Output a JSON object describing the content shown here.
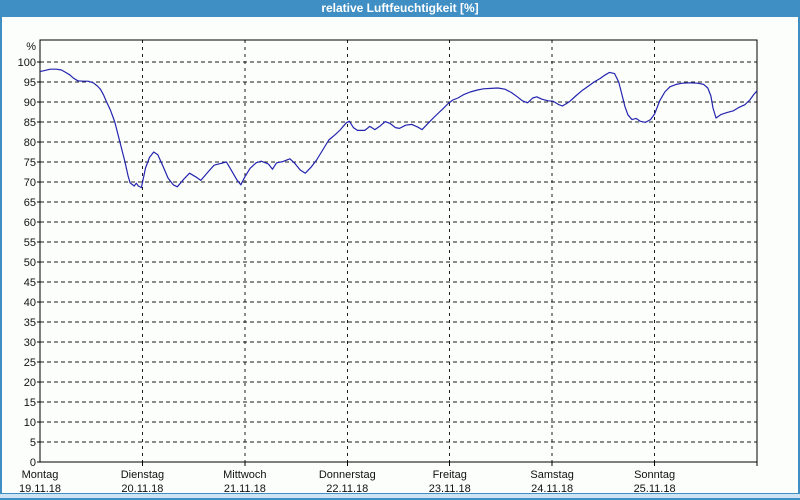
{
  "window": {
    "title": "relative Luftfeuchtigkeit [%]"
  },
  "colors": {
    "titlebar": "#3f8fc4",
    "frame": "#3f8fc4",
    "status_strip": "#cfe4f3",
    "background": "#fcfefb",
    "line": "#2424b0",
    "grid": "#1b1b1b",
    "axis": "#000000",
    "text": "#111111",
    "title_text": "#ffffff"
  },
  "chart_data": {
    "type": "line",
    "title": "relative Luftfeuchtigkeit [%]",
    "xlabel": "",
    "ylabel": "%",
    "ylim": [
      0,
      105
    ],
    "y_ticks": [
      0,
      5,
      10,
      15,
      20,
      25,
      30,
      35,
      40,
      45,
      50,
      55,
      60,
      65,
      70,
      75,
      80,
      85,
      90,
      95,
      100
    ],
    "grid": "dashed",
    "legend": "none",
    "x_days": [
      {
        "name": "Montag",
        "date": "19.11.18"
      },
      {
        "name": "Dienstag",
        "date": "20.11.18"
      },
      {
        "name": "Mittwoch",
        "date": "21.11.18"
      },
      {
        "name": "Donnerstag",
        "date": "22.11.18"
      },
      {
        "name": "Freitag",
        "date": "23.11.18"
      },
      {
        "name": "Samstag",
        "date": "24.11.18"
      },
      {
        "name": "Sonntag",
        "date": "25.11.18"
      }
    ],
    "series": [
      {
        "name": "relative Luftfeuchtigkeit [%]",
        "color": "#2424b0",
        "x_unit": "days_from_monday_00h",
        "points": [
          [
            0.0,
            97.6
          ],
          [
            0.05,
            97.9
          ],
          [
            0.1,
            98.2
          ],
          [
            0.16,
            98.2
          ],
          [
            0.21,
            98.0
          ],
          [
            0.25,
            97.4
          ],
          [
            0.29,
            96.8
          ],
          [
            0.33,
            95.9
          ],
          [
            0.37,
            95.3
          ],
          [
            0.42,
            95.2
          ],
          [
            0.47,
            95.2
          ],
          [
            0.52,
            94.8
          ],
          [
            0.56,
            94.0
          ],
          [
            0.59,
            93.2
          ],
          [
            0.62,
            91.8
          ],
          [
            0.65,
            90.0
          ],
          [
            0.69,
            87.8
          ],
          [
            0.73,
            85.0
          ],
          [
            0.78,
            80.0
          ],
          [
            0.83,
            75.0
          ],
          [
            0.86,
            71.5
          ],
          [
            0.88,
            69.8
          ],
          [
            0.92,
            69.0
          ],
          [
            0.94,
            69.7
          ],
          [
            0.96,
            69.0
          ],
          [
            0.99,
            68.6
          ],
          [
            1.03,
            73.5
          ],
          [
            1.07,
            76.2
          ],
          [
            1.11,
            77.5
          ],
          [
            1.15,
            76.8
          ],
          [
            1.2,
            74.0
          ],
          [
            1.25,
            71.0
          ],
          [
            1.3,
            69.3
          ],
          [
            1.34,
            68.8
          ],
          [
            1.4,
            70.6
          ],
          [
            1.46,
            72.2
          ],
          [
            1.52,
            71.3
          ],
          [
            1.57,
            70.4
          ],
          [
            1.64,
            72.5
          ],
          [
            1.7,
            74.2
          ],
          [
            1.76,
            74.6
          ],
          [
            1.82,
            75.0
          ],
          [
            1.86,
            73.3
          ],
          [
            1.92,
            70.6
          ],
          [
            1.96,
            69.3
          ],
          [
            2.0,
            71.3
          ],
          [
            2.05,
            73.4
          ],
          [
            2.11,
            74.8
          ],
          [
            2.16,
            75.2
          ],
          [
            2.23,
            74.5
          ],
          [
            2.27,
            73.2
          ],
          [
            2.31,
            74.8
          ],
          [
            2.37,
            75.1
          ],
          [
            2.44,
            75.8
          ],
          [
            2.49,
            74.6
          ],
          [
            2.54,
            73.0
          ],
          [
            2.59,
            72.2
          ],
          [
            2.65,
            73.8
          ],
          [
            2.7,
            75.5
          ],
          [
            2.76,
            78.0
          ],
          [
            2.82,
            80.5
          ],
          [
            2.88,
            81.8
          ],
          [
            2.93,
            83.0
          ],
          [
            2.99,
            84.8
          ],
          [
            3.02,
            85.2
          ],
          [
            3.06,
            83.6
          ],
          [
            3.1,
            82.9
          ],
          [
            3.17,
            82.9
          ],
          [
            3.22,
            83.9
          ],
          [
            3.27,
            83.1
          ],
          [
            3.32,
            84.0
          ],
          [
            3.37,
            85.1
          ],
          [
            3.42,
            84.6
          ],
          [
            3.47,
            83.6
          ],
          [
            3.51,
            83.4
          ],
          [
            3.57,
            84.2
          ],
          [
            3.63,
            84.4
          ],
          [
            3.69,
            83.7
          ],
          [
            3.73,
            83.1
          ],
          [
            3.79,
            84.7
          ],
          [
            3.84,
            86.0
          ],
          [
            3.88,
            87.0
          ],
          [
            3.93,
            88.2
          ],
          [
            3.98,
            89.5
          ],
          [
            4.03,
            90.5
          ],
          [
            4.08,
            91.0
          ],
          [
            4.14,
            91.9
          ],
          [
            4.2,
            92.5
          ],
          [
            4.27,
            93.0
          ],
          [
            4.33,
            93.3
          ],
          [
            4.4,
            93.4
          ],
          [
            4.47,
            93.5
          ],
          [
            4.54,
            93.2
          ],
          [
            4.6,
            92.4
          ],
          [
            4.66,
            91.3
          ],
          [
            4.71,
            90.3
          ],
          [
            4.76,
            89.8
          ],
          [
            4.81,
            91.0
          ],
          [
            4.85,
            91.3
          ],
          [
            4.9,
            90.7
          ],
          [
            4.96,
            90.3
          ],
          [
            5.01,
            90.2
          ],
          [
            5.06,
            89.4
          ],
          [
            5.1,
            89.0
          ],
          [
            5.17,
            90.1
          ],
          [
            5.23,
            91.5
          ],
          [
            5.29,
            92.8
          ],
          [
            5.35,
            93.9
          ],
          [
            5.41,
            95.0
          ],
          [
            5.47,
            95.9
          ],
          [
            5.52,
            96.8
          ],
          [
            5.56,
            97.4
          ],
          [
            5.61,
            97.1
          ],
          [
            5.65,
            95.0
          ],
          [
            5.68,
            92.0
          ],
          [
            5.71,
            88.9
          ],
          [
            5.74,
            86.8
          ],
          [
            5.78,
            85.6
          ],
          [
            5.82,
            85.9
          ],
          [
            5.86,
            85.2
          ],
          [
            5.91,
            84.9
          ],
          [
            5.96,
            85.6
          ],
          [
            6.0,
            87.0
          ],
          [
            6.05,
            90.3
          ],
          [
            6.1,
            92.5
          ],
          [
            6.15,
            93.8
          ],
          [
            6.21,
            94.4
          ],
          [
            6.27,
            94.7
          ],
          [
            6.34,
            94.8
          ],
          [
            6.42,
            94.7
          ],
          [
            6.48,
            94.4
          ],
          [
            6.52,
            93.5
          ],
          [
            6.55,
            91.5
          ],
          [
            6.57,
            88.5
          ],
          [
            6.6,
            86.0
          ],
          [
            6.65,
            86.9
          ],
          [
            6.71,
            87.4
          ],
          [
            6.77,
            87.8
          ],
          [
            6.82,
            88.6
          ],
          [
            6.88,
            89.3
          ],
          [
            6.93,
            90.5
          ],
          [
            6.97,
            91.9
          ],
          [
            7.0,
            92.8
          ]
        ]
      }
    ]
  }
}
